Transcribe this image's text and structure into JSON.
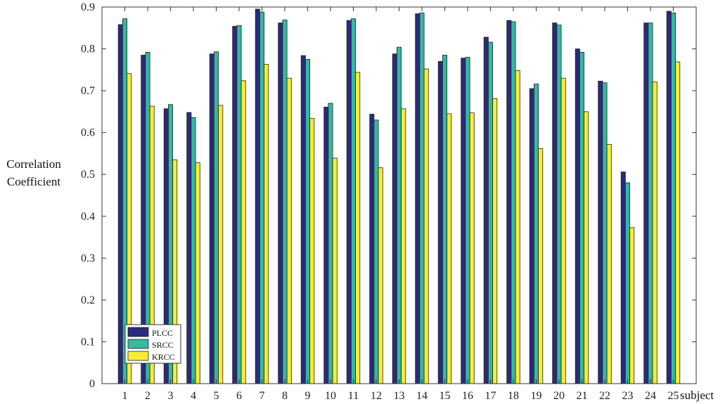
{
  "chart_data": {
    "type": "bar",
    "title": "",
    "xlabel": "subject",
    "ylabel": [
      "Correlation",
      "Coefficient"
    ],
    "ylim": [
      0,
      0.9
    ],
    "yticks": [
      "0",
      "0.1",
      "0.2",
      "0.3",
      "0.4",
      "0.5",
      "0.6",
      "0.7",
      "0.8",
      "0.9"
    ],
    "categories": [
      "1",
      "2",
      "3",
      "4",
      "5",
      "6",
      "7",
      "8",
      "9",
      "10",
      "11",
      "12",
      "13",
      "14",
      "15",
      "16",
      "17",
      "18",
      "19",
      "20",
      "21",
      "22",
      "23",
      "24",
      "25"
    ],
    "grid": false,
    "legend_position": "bottom-left",
    "series": [
      {
        "name": "PLCC",
        "color": "#2b2a7d",
        "values": [
          0.858,
          0.785,
          0.657,
          0.648,
          0.788,
          0.854,
          0.895,
          0.862,
          0.784,
          0.661,
          0.868,
          0.644,
          0.788,
          0.884,
          0.77,
          0.778,
          0.828,
          0.868,
          0.705,
          0.862,
          0.8,
          0.723,
          0.506,
          0.862,
          0.89
        ]
      },
      {
        "name": "SRCC",
        "color": "#35b99f",
        "values": [
          0.872,
          0.792,
          0.667,
          0.636,
          0.793,
          0.856,
          0.888,
          0.869,
          0.775,
          0.67,
          0.872,
          0.63,
          0.804,
          0.886,
          0.785,
          0.78,
          0.816,
          0.865,
          0.716,
          0.857,
          0.792,
          0.719,
          0.48,
          0.862,
          0.886
        ]
      },
      {
        "name": "KRCC",
        "color": "#f8ec32",
        "values": [
          0.741,
          0.663,
          0.535,
          0.528,
          0.665,
          0.724,
          0.763,
          0.73,
          0.634,
          0.539,
          0.744,
          0.516,
          0.657,
          0.752,
          0.645,
          0.647,
          0.681,
          0.748,
          0.562,
          0.73,
          0.65,
          0.572,
          0.373,
          0.721,
          0.769
        ]
      }
    ]
  }
}
